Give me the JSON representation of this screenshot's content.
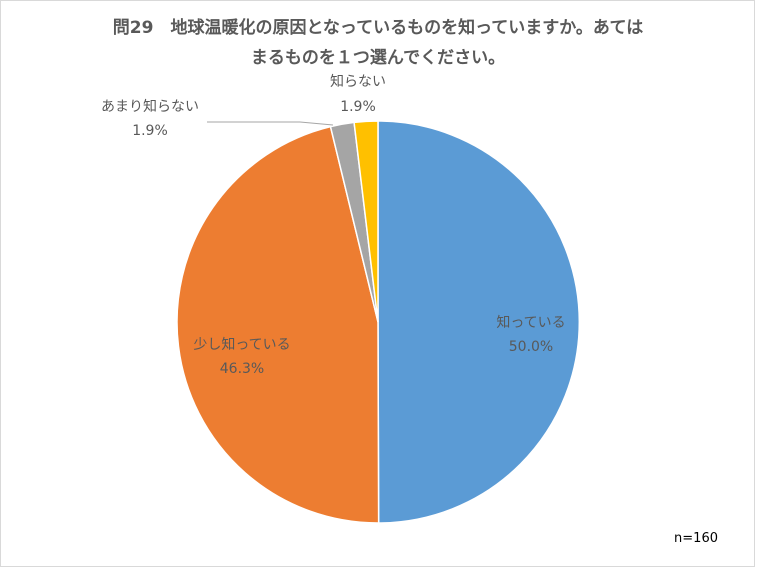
{
  "chart_data": {
    "type": "pie",
    "title_lines": [
      "問29　地球温暖化の原因となっているものを知っていますか。あては",
      "まるものを１つ選んでください。"
    ],
    "slices": [
      {
        "label": "知っている",
        "value": 50.0,
        "display": "50.0%",
        "color": "#5B9BD5"
      },
      {
        "label": "少し知っている",
        "value": 46.3,
        "display": "46.3%",
        "color": "#ED7D31"
      },
      {
        "label": "あまり知らない",
        "value": 1.9,
        "display": "1.9%",
        "color": "#A5A5A5"
      },
      {
        "label": "知らない",
        "value": 1.9,
        "display": "1.9%",
        "color": "#FFC000"
      }
    ],
    "note": "n=160",
    "legend": "none"
  }
}
